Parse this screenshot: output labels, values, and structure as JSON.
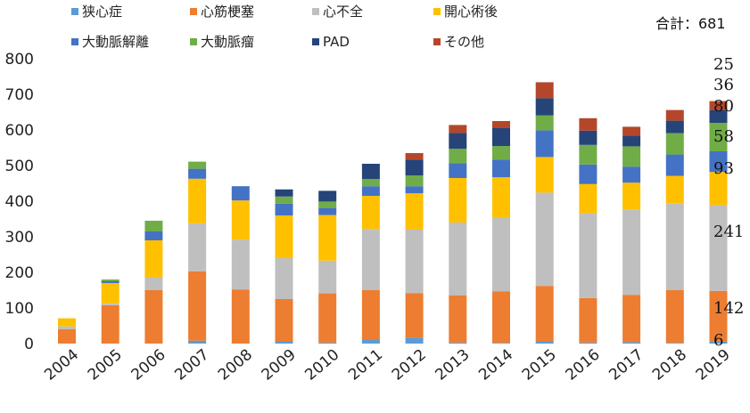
{
  "chart_data": {
    "type": "bar",
    "stacked": true,
    "title": "",
    "xlabel": "",
    "ylabel": "",
    "ylim": [
      0,
      800
    ],
    "yticks": [
      0,
      100,
      200,
      300,
      400,
      500,
      600,
      700,
      800
    ],
    "grid": false,
    "legend_position": "top",
    "categories": [
      "2004",
      "2005",
      "2006",
      "2007",
      "2008",
      "2009",
      "2010",
      "2011",
      "2012",
      "2013",
      "2014",
      "2015",
      "2016",
      "2017",
      "2018",
      "2019"
    ],
    "series": [
      {
        "name": "狭心症",
        "color": "#5b9bd5",
        "values": [
          0,
          0,
          0,
          8,
          0,
          5,
          3,
          10,
          17,
          3,
          2,
          5,
          3,
          4,
          2,
          6
        ]
      },
      {
        "name": "心筋梗塞",
        "color": "#ed7d31",
        "values": [
          40,
          108,
          150,
          195,
          152,
          120,
          138,
          140,
          125,
          132,
          145,
          157,
          125,
          133,
          148,
          142
        ]
      },
      {
        "name": "心不全",
        "color": "#bfbfbf",
        "values": [
          8,
          5,
          35,
          135,
          140,
          115,
          92,
          172,
          178,
          205,
          208,
          262,
          238,
          240,
          243,
          241
        ]
      },
      {
        "name": "開心術後",
        "color": "#ffc000",
        "values": [
          23,
          57,
          105,
          125,
          110,
          120,
          128,
          93,
          102,
          125,
          112,
          100,
          82,
          75,
          78,
          93
        ]
      },
      {
        "name": "大動脈解離",
        "color": "#4472c4",
        "values": [
          0,
          5,
          25,
          28,
          40,
          33,
          20,
          27,
          20,
          42,
          50,
          75,
          55,
          45,
          60,
          58
        ]
      },
      {
        "name": "大動脈瘤",
        "color": "#70ad47",
        "values": [
          0,
          5,
          30,
          20,
          0,
          20,
          18,
          20,
          30,
          40,
          38,
          42,
          55,
          57,
          60,
          80
        ]
      },
      {
        "name": "PAD",
        "color": "#264478",
        "values": [
          0,
          0,
          0,
          0,
          0,
          20,
          30,
          43,
          45,
          45,
          50,
          48,
          40,
          30,
          35,
          36
        ]
      },
      {
        "name": "その他",
        "color": "#b4472a",
        "values": [
          0,
          0,
          0,
          0,
          0,
          0,
          0,
          0,
          18,
          22,
          20,
          45,
          35,
          25,
          30,
          25
        ]
      }
    ],
    "total_label": "合計：681",
    "annotations": [
      "25",
      "36",
      "80",
      "58",
      "93",
      "241",
      "142",
      "6"
    ]
  }
}
